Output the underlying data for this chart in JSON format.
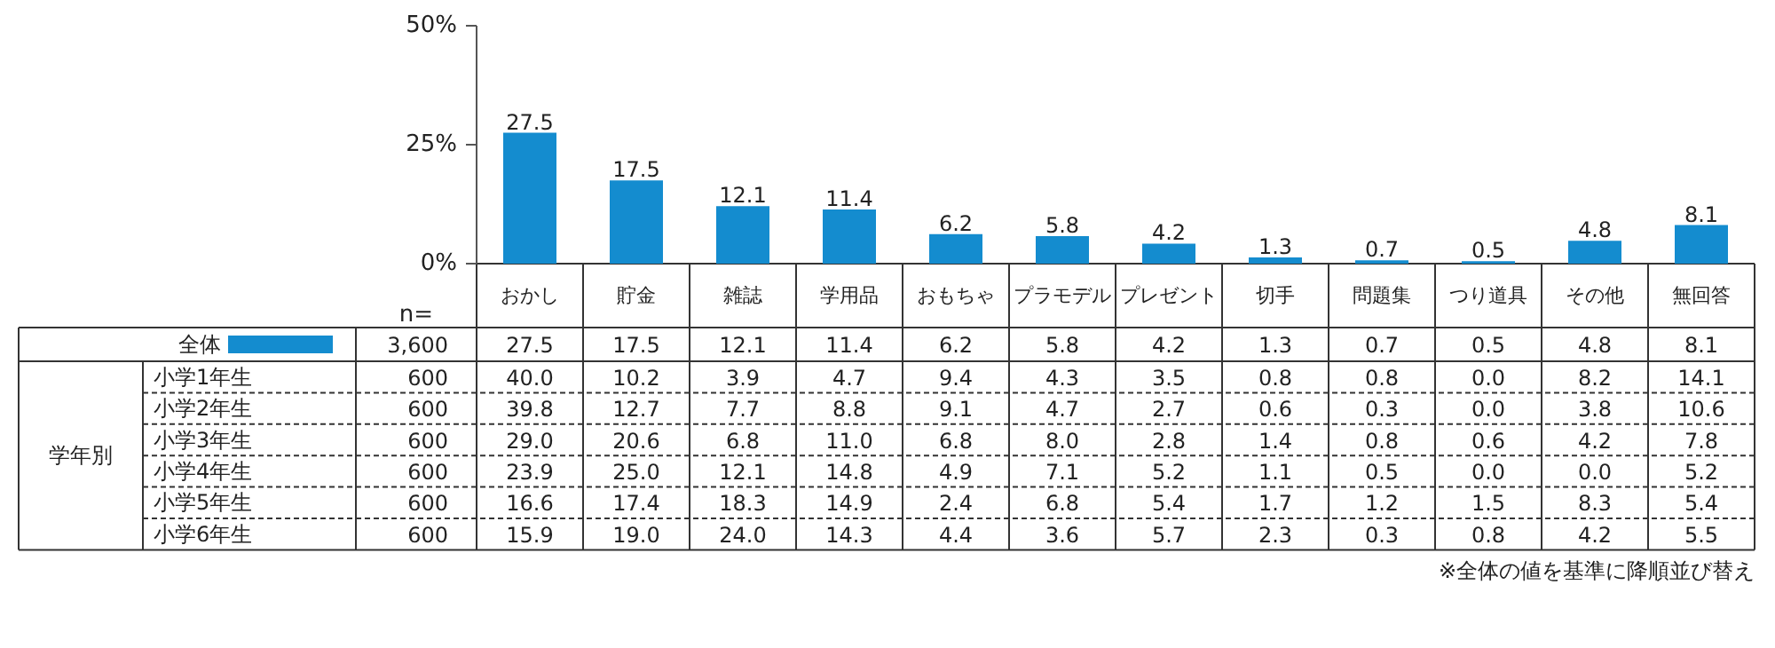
{
  "chart_data": [
    {
      "type": "bar",
      "categories": [
        "おかし",
        "貯金",
        "雑誌",
        "学用品",
        "おもちゃ",
        "プラモデル",
        "プレゼント",
        "切手",
        "問題集",
        "つり道具",
        "その他",
        "無回答"
      ],
      "ylim": [
        0,
        50
      ],
      "yticks": [
        {
          "value": 0,
          "label": "0%"
        },
        {
          "value": 25,
          "label": "25%"
        },
        {
          "value": 50,
          "label": "50%"
        }
      ],
      "data_labels": true,
      "series": [
        {
          "name": "全体",
          "type": "bar",
          "color": "#148ccf",
          "values": [
            27.5,
            17.5,
            12.1,
            11.4,
            6.2,
            5.8,
            4.2,
            1.3,
            0.7,
            0.5,
            4.8,
            8.1
          ]
        }
      ]
    },
    {
      "type": "other",
      "annotations": [
        "n=",
        "3,600",
        "学年別",
        "※全体の値を基準に降順並び替え",
        "27.5",
        "17.5",
        "12.1",
        "11.4",
        "6.2",
        "5.8",
        "4.2",
        "1.3",
        "0.7",
        "0.5",
        "4.8",
        "8.1",
        "小学1年生",
        "600",
        "40.0",
        "10.2",
        "3.9",
        "4.7",
        "9.4",
        "4.3",
        "3.5",
        "0.8",
        "0.8",
        "0.0",
        "8.2",
        "14.1",
        "小学2年生",
        "600",
        "39.8",
        "12.7",
        "7.7",
        "8.8",
        "9.1",
        "4.7",
        "2.7",
        "0.6",
        "0.3",
        "0.0",
        "3.8",
        "10.6",
        "小学3年生",
        "600",
        "29.0",
        "20.6",
        "6.8",
        "11.0",
        "6.8",
        "8.0",
        "2.8",
        "1.4",
        "0.8",
        "0.6",
        "4.2",
        "7.8",
        "小学4年生",
        "600",
        "23.9",
        "25.0",
        "12.1",
        "14.8",
        "4.9",
        "7.1",
        "5.2",
        "1.1",
        "0.5",
        "0.0",
        "0.0",
        "5.2",
        "小学5年生",
        "600",
        "16.6",
        "17.4",
        "18.3",
        "14.9",
        "2.4",
        "6.8",
        "5.4",
        "1.7",
        "1.2",
        "1.5",
        "8.3",
        "5.4",
        "小学6年生",
        "600",
        "15.9",
        "19.0",
        "24.0",
        "14.3",
        "4.4",
        "3.6",
        "5.7",
        "2.3",
        "0.3",
        "0.8",
        "4.2",
        "5.5"
      ]
    }
  ]
}
